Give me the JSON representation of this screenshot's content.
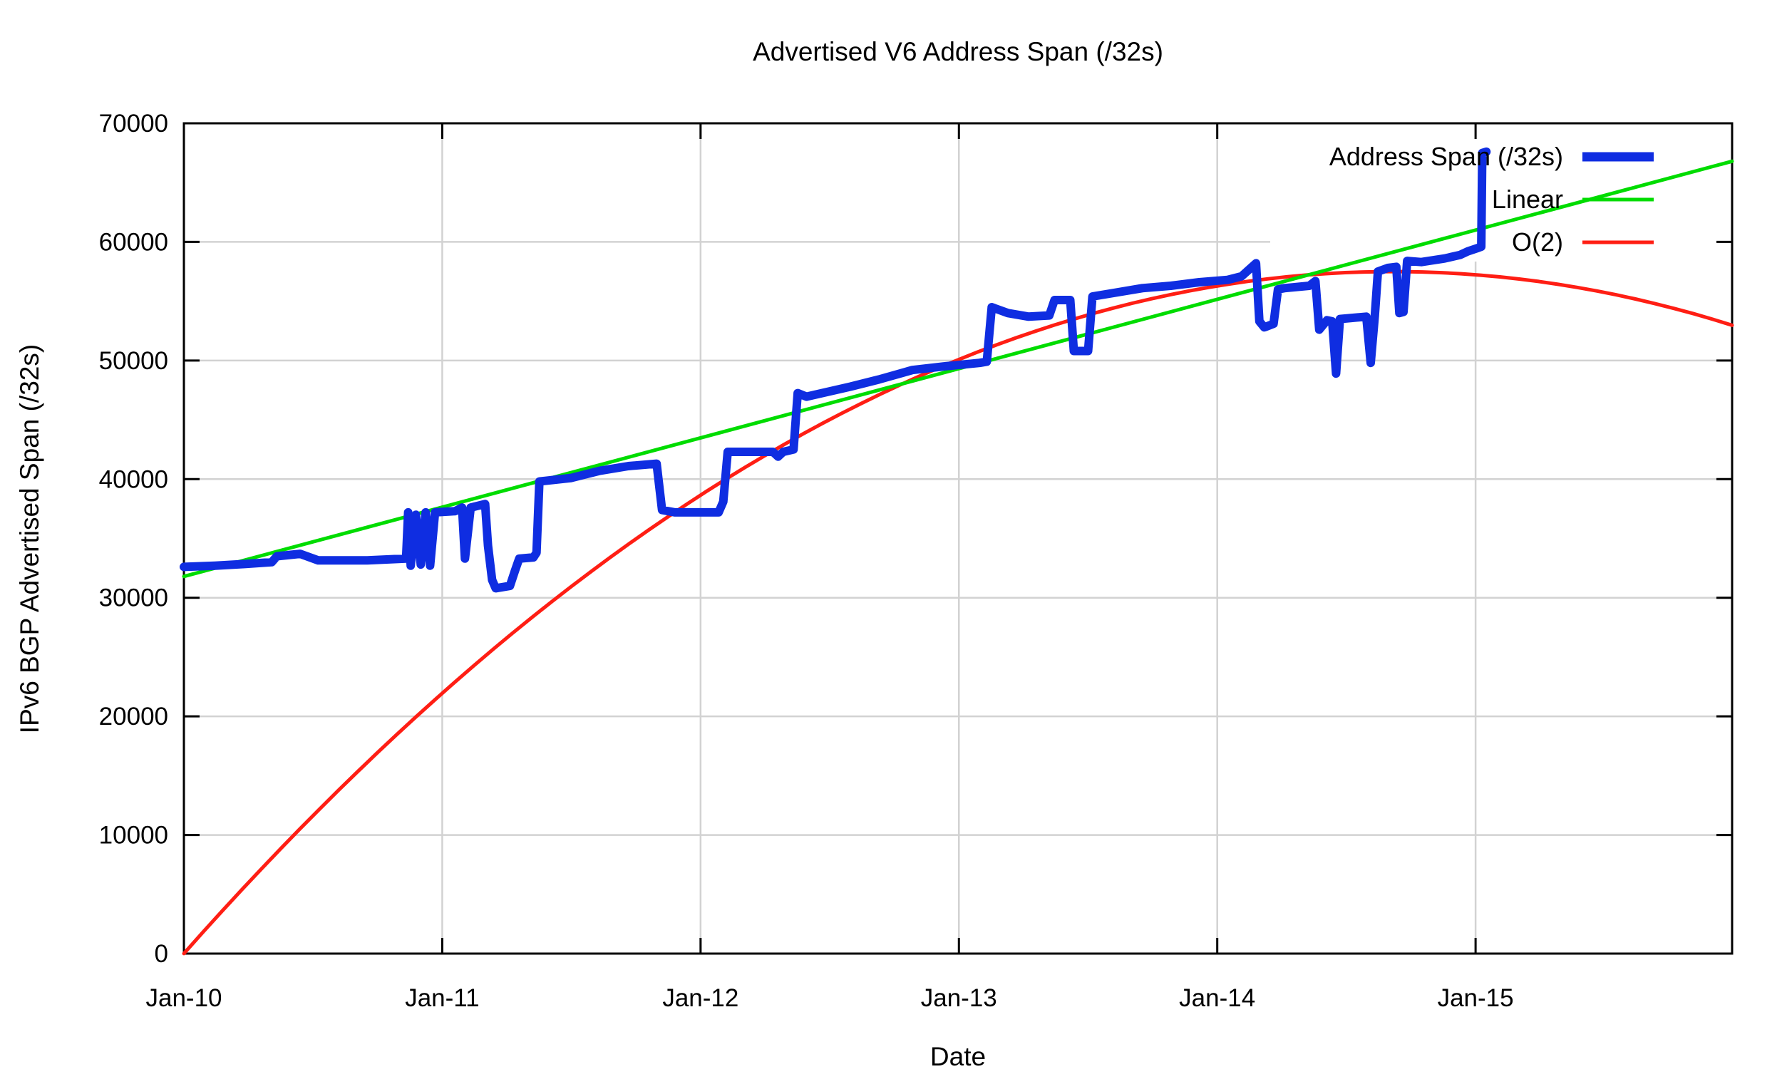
{
  "chart_data": {
    "type": "line",
    "title": "Advertised V6 Address Span (/32s)",
    "xlabel": "Date",
    "ylabel": "IPv6 BGP Advertised Span (/32s)",
    "x_ticks": [
      {
        "label": "Jan-10",
        "year": 2010
      },
      {
        "label": "Jan-11",
        "year": 2011
      },
      {
        "label": "Jan-12",
        "year": 2012
      },
      {
        "label": "Jan-13",
        "year": 2013
      },
      {
        "label": "Jan-14",
        "year": 2014
      },
      {
        "label": "Jan-15",
        "year": 2015
      }
    ],
    "y_ticks": [
      0,
      10000,
      20000,
      30000,
      40000,
      50000,
      60000,
      70000
    ],
    "ylim": [
      0,
      70000
    ],
    "xlim_years": [
      2010.0,
      2015.993
    ],
    "grid": true,
    "legend_position": "top-right",
    "colors": {
      "data_blue": "#0f2de1",
      "linear_green": "#00dc00",
      "o2_red": "#ff1e14",
      "grid_gray": "#d2d2d2",
      "frame_black": "#000000",
      "background": "#ffffff"
    },
    "legend": {
      "rows": [
        {
          "label": "Address Span (/32s)",
          "color": "#0f2de1",
          "sample_thickness": 13
        },
        {
          "label": "Linear",
          "color": "#00dc00",
          "sample_thickness": 5
        },
        {
          "label": "O(2)",
          "color": "#ff1e14",
          "sample_thickness": 5
        }
      ]
    },
    "series": [
      {
        "name": "Address Span (/32s)",
        "type": "polyline",
        "color": "#0f2de1",
        "width": 12,
        "points": [
          [
            2010.0,
            32600
          ],
          [
            2010.12,
            32700
          ],
          [
            2010.24,
            32850
          ],
          [
            2010.34,
            33000
          ],
          [
            2010.36,
            33500
          ],
          [
            2010.45,
            33700
          ],
          [
            2010.52,
            33150
          ],
          [
            2010.71,
            33150
          ],
          [
            2010.86,
            33300
          ],
          [
            2010.868,
            37200
          ],
          [
            2010.878,
            32700
          ],
          [
            2010.898,
            37000
          ],
          [
            2010.917,
            32800
          ],
          [
            2010.936,
            37200
          ],
          [
            2010.953,
            32700
          ],
          [
            2010.972,
            37200
          ],
          [
            2011.05,
            37300
          ],
          [
            2011.077,
            37600
          ],
          [
            2011.088,
            33300
          ],
          [
            2011.11,
            37600
          ],
          [
            2011.166,
            37900
          ],
          [
            2011.177,
            34400
          ],
          [
            2011.193,
            31500
          ],
          [
            2011.207,
            30800
          ],
          [
            2011.262,
            31000
          ],
          [
            2011.282,
            32300
          ],
          [
            2011.298,
            33300
          ],
          [
            2011.353,
            33400
          ],
          [
            2011.365,
            33800
          ],
          [
            2011.376,
            39800
          ],
          [
            2011.5,
            40100
          ],
          [
            2011.61,
            40700
          ],
          [
            2011.72,
            41100
          ],
          [
            2011.83,
            41300
          ],
          [
            2011.851,
            37400
          ],
          [
            2011.9,
            37200
          ],
          [
            2012.07,
            37200
          ],
          [
            2012.088,
            38100
          ],
          [
            2012.105,
            42300
          ],
          [
            2012.28,
            42300
          ],
          [
            2012.3,
            41900
          ],
          [
            2012.32,
            42300
          ],
          [
            2012.36,
            42500
          ],
          [
            2012.376,
            47250
          ],
          [
            2012.41,
            46950
          ],
          [
            2012.5,
            47400
          ],
          [
            2012.58,
            47800
          ],
          [
            2012.69,
            48400
          ],
          [
            2012.82,
            49200
          ],
          [
            2012.94,
            49500
          ],
          [
            2013.08,
            49800
          ],
          [
            2013.108,
            49900
          ],
          [
            2013.127,
            54500
          ],
          [
            2013.19,
            54000
          ],
          [
            2013.27,
            53700
          ],
          [
            2013.35,
            53800
          ],
          [
            2013.37,
            55100
          ],
          [
            2013.431,
            55100
          ],
          [
            2013.445,
            50800
          ],
          [
            2013.5,
            50800
          ],
          [
            2013.517,
            55400
          ],
          [
            2013.6,
            55700
          ],
          [
            2013.71,
            56100
          ],
          [
            2013.82,
            56300
          ],
          [
            2013.93,
            56600
          ],
          [
            2014.04,
            56800
          ],
          [
            2014.094,
            57100
          ],
          [
            2014.13,
            57800
          ],
          [
            2014.15,
            58200
          ],
          [
            2014.163,
            53300
          ],
          [
            2014.182,
            52800
          ],
          [
            2014.218,
            53100
          ],
          [
            2014.235,
            56000
          ],
          [
            2014.26,
            56100
          ],
          [
            2014.356,
            56300
          ],
          [
            2014.38,
            56700
          ],
          [
            2014.395,
            52600
          ],
          [
            2014.425,
            53400
          ],
          [
            2014.445,
            53300
          ],
          [
            2014.46,
            48900
          ],
          [
            2014.475,
            53500
          ],
          [
            2014.577,
            53700
          ],
          [
            2014.594,
            49800
          ],
          [
            2014.61,
            53800
          ],
          [
            2014.622,
            57500
          ],
          [
            2014.66,
            57800
          ],
          [
            2014.693,
            57900
          ],
          [
            2014.705,
            54000
          ],
          [
            2014.721,
            54100
          ],
          [
            2014.735,
            58400
          ],
          [
            2014.79,
            58300
          ],
          [
            2014.88,
            58600
          ],
          [
            2014.94,
            58900
          ],
          [
            2014.97,
            59200
          ],
          [
            2015.01,
            59500
          ],
          [
            2015.022,
            59600
          ],
          [
            2015.026,
            67500
          ],
          [
            2015.042,
            67600
          ]
        ]
      },
      {
        "name": "Linear",
        "type": "polyline",
        "color": "#00dc00",
        "width": 5,
        "points": [
          [
            2010.0,
            31800
          ],
          [
            2015.993,
            66800
          ]
        ]
      },
      {
        "name": "O(2)",
        "type": "quadratic",
        "color": "#ff1e14",
        "width": 5,
        "vertex": [
          2014.68,
          57500
        ],
        "a": -2625,
        "x_range": [
          2010.0,
          2015.993
        ]
      }
    ]
  }
}
